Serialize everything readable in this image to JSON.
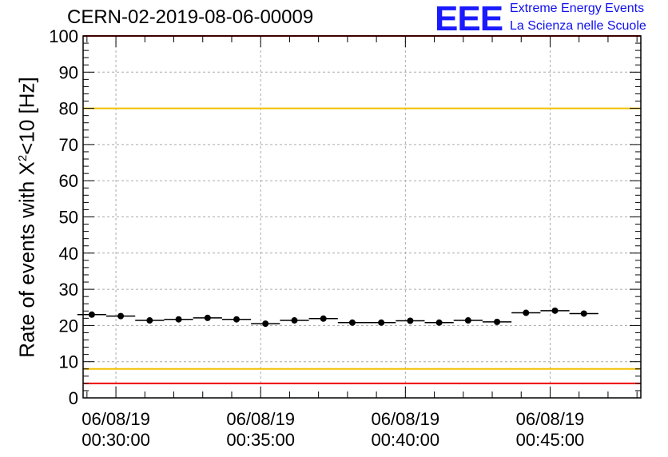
{
  "header": {
    "run_id": "CERN-02-2019-08-06-00009",
    "logo_text": "EEE",
    "logo_line1": "Extreme Energy Events",
    "logo_line2": "La Scienza nelle Scuole"
  },
  "chart_data": {
    "type": "scatter",
    "title": "CERN-02-2019-08-06-00009",
    "xlabel": "",
    "ylabel_prefix": "Rate of events with X",
    "ylabel_sup": "2",
    "ylabel_suffix": "<10 [Hz]",
    "ylim": [
      0,
      100
    ],
    "yticks": [
      0,
      10,
      20,
      30,
      40,
      50,
      60,
      70,
      80,
      90,
      100
    ],
    "xlim": [
      "2019-06-08 00:28:52",
      "2019-06-08 00:48:08"
    ],
    "xticks": [
      {
        "date": "06/08/19",
        "time": "00:30:00"
      },
      {
        "date": "06/08/19",
        "time": "00:35:00"
      },
      {
        "date": "06/08/19",
        "time": "00:40:00"
      },
      {
        "date": "06/08/19",
        "time": "00:45:00"
      }
    ],
    "grid": true,
    "bin_width": "00:01:00",
    "x": [
      "00:29:10",
      "00:30:10",
      "00:31:10",
      "00:32:10",
      "00:33:10",
      "00:34:10",
      "00:35:10",
      "00:36:10",
      "00:37:10",
      "00:38:10",
      "00:39:10",
      "00:40:10",
      "00:41:10",
      "00:42:10",
      "00:43:10",
      "00:44:10",
      "00:45:10",
      "00:46:10"
    ],
    "y": [
      23.0,
      22.6,
      21.4,
      21.7,
      22.1,
      21.7,
      20.5,
      21.4,
      21.9,
      20.8,
      20.8,
      21.3,
      20.8,
      21.4,
      21.0,
      23.5,
      24.1,
      23.3
    ],
    "reference_lines": [
      {
        "value": 100,
        "color": "#ee0000"
      },
      {
        "value": 80,
        "color": "#f0c000"
      },
      {
        "value": 8,
        "color": "#f0c000"
      },
      {
        "value": 4,
        "color": "#ee0000"
      }
    ]
  }
}
